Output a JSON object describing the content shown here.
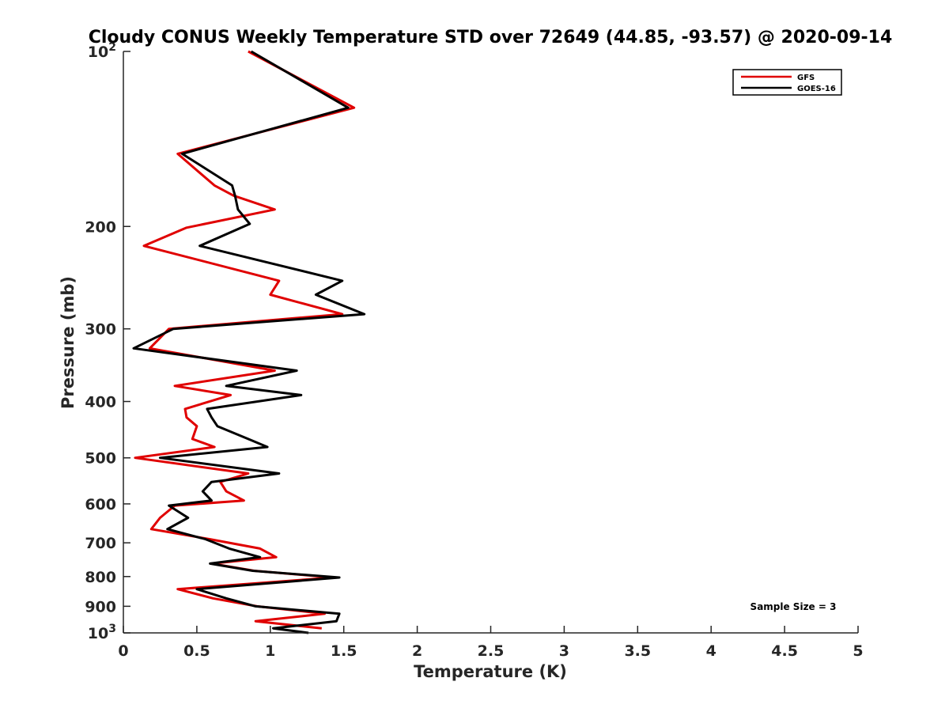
{
  "chart_data": {
    "type": "line",
    "title": "Cloudy CONUS Weekly Temperature STD over 72649 (44.85, -93.57) @ 2020-09-14",
    "xlabel": "Temperature (K)",
    "ylabel": "Pressure (mb)",
    "xlim": [
      0,
      5
    ],
    "ylim": [
      100,
      1000
    ],
    "y_scale": "log",
    "y_reversed": true,
    "x_ticks": [
      "0",
      "0.5",
      "1",
      "1.5",
      "2",
      "2.5",
      "3",
      "3.5",
      "4",
      "4.5",
      "5"
    ],
    "x_tick_values": [
      0,
      0.5,
      1,
      1.5,
      2,
      2.5,
      3,
      3.5,
      4,
      4.5,
      5
    ],
    "y_tick_values": [
      100,
      200,
      300,
      400,
      500,
      600,
      700,
      800,
      900,
      1000
    ],
    "y_ticks": [
      {
        "base": "10",
        "exp": "2"
      },
      {
        "base": "200",
        "exp": ""
      },
      {
        "base": "300",
        "exp": ""
      },
      {
        "base": "400",
        "exp": ""
      },
      {
        "base": "500",
        "exp": ""
      },
      {
        "base": "600",
        "exp": ""
      },
      {
        "base": "700",
        "exp": ""
      },
      {
        "base": "800",
        "exp": ""
      },
      {
        "base": "900",
        "exp": ""
      },
      {
        "base": "10",
        "exp": "3"
      }
    ],
    "grid": false,
    "legend_position": "top-right",
    "annotation": "Sample Size = 3",
    "series": [
      {
        "name": "GFS",
        "color": "#e00000",
        "points": [
          [
            0.85,
            100
          ],
          [
            1.57,
            125
          ],
          [
            0.37,
            150
          ],
          [
            0.62,
            170
          ],
          [
            0.75,
            177
          ],
          [
            1.03,
            187
          ],
          [
            0.43,
            201
          ],
          [
            0.14,
            216
          ],
          [
            1.06,
            248
          ],
          [
            1.0,
            262
          ],
          [
            1.49,
            283
          ],
          [
            0.31,
            300
          ],
          [
            0.18,
            324
          ],
          [
            1.03,
            354
          ],
          [
            0.35,
            376
          ],
          [
            0.73,
            390
          ],
          [
            0.42,
            412
          ],
          [
            0.43,
            426
          ],
          [
            0.5,
            441
          ],
          [
            0.47,
            464
          ],
          [
            0.62,
            479
          ],
          [
            0.08,
            500
          ],
          [
            0.85,
            532
          ],
          [
            0.66,
            550
          ],
          [
            0.7,
            571
          ],
          [
            0.82,
            592
          ],
          [
            0.35,
            604
          ],
          [
            0.25,
            634
          ],
          [
            0.19,
            663
          ],
          [
            0.59,
            690
          ],
          [
            0.93,
            716
          ],
          [
            1.04,
            741
          ],
          [
            0.6,
            760
          ],
          [
            0.89,
            782
          ],
          [
            1.43,
            803
          ],
          [
            0.37,
            841
          ],
          [
            0.61,
            872
          ],
          [
            0.91,
            900
          ],
          [
            1.37,
            927
          ],
          [
            0.9,
            955
          ],
          [
            1.35,
            982
          ]
        ]
      },
      {
        "name": "GOES-16",
        "color": "#000000",
        "points": [
          [
            0.87,
            100
          ],
          [
            1.53,
            125
          ],
          [
            0.4,
            150
          ],
          [
            0.74,
            170
          ],
          [
            0.76,
            177
          ],
          [
            0.78,
            187
          ],
          [
            0.86,
            198
          ],
          [
            0.52,
            216
          ],
          [
            1.49,
            248
          ],
          [
            1.31,
            262
          ],
          [
            1.64,
            283
          ],
          [
            0.34,
            300
          ],
          [
            0.07,
            324
          ],
          [
            1.18,
            354
          ],
          [
            0.7,
            376
          ],
          [
            1.21,
            390
          ],
          [
            0.57,
            412
          ],
          [
            0.6,
            426
          ],
          [
            0.64,
            441
          ],
          [
            0.85,
            464
          ],
          [
            0.98,
            479
          ],
          [
            0.25,
            500
          ],
          [
            1.06,
            532
          ],
          [
            0.6,
            550
          ],
          [
            0.54,
            571
          ],
          [
            0.6,
            592
          ],
          [
            0.31,
            604
          ],
          [
            0.44,
            634
          ],
          [
            0.3,
            663
          ],
          [
            0.56,
            690
          ],
          [
            0.72,
            716
          ],
          [
            0.93,
            741
          ],
          [
            0.59,
            760
          ],
          [
            0.88,
            782
          ],
          [
            1.47,
            803
          ],
          [
            0.5,
            841
          ],
          [
            0.7,
            872
          ],
          [
            0.9,
            900
          ],
          [
            1.47,
            927
          ],
          [
            1.45,
            955
          ],
          [
            1.02,
            982
          ],
          [
            1.26,
            1000
          ]
        ]
      }
    ]
  }
}
